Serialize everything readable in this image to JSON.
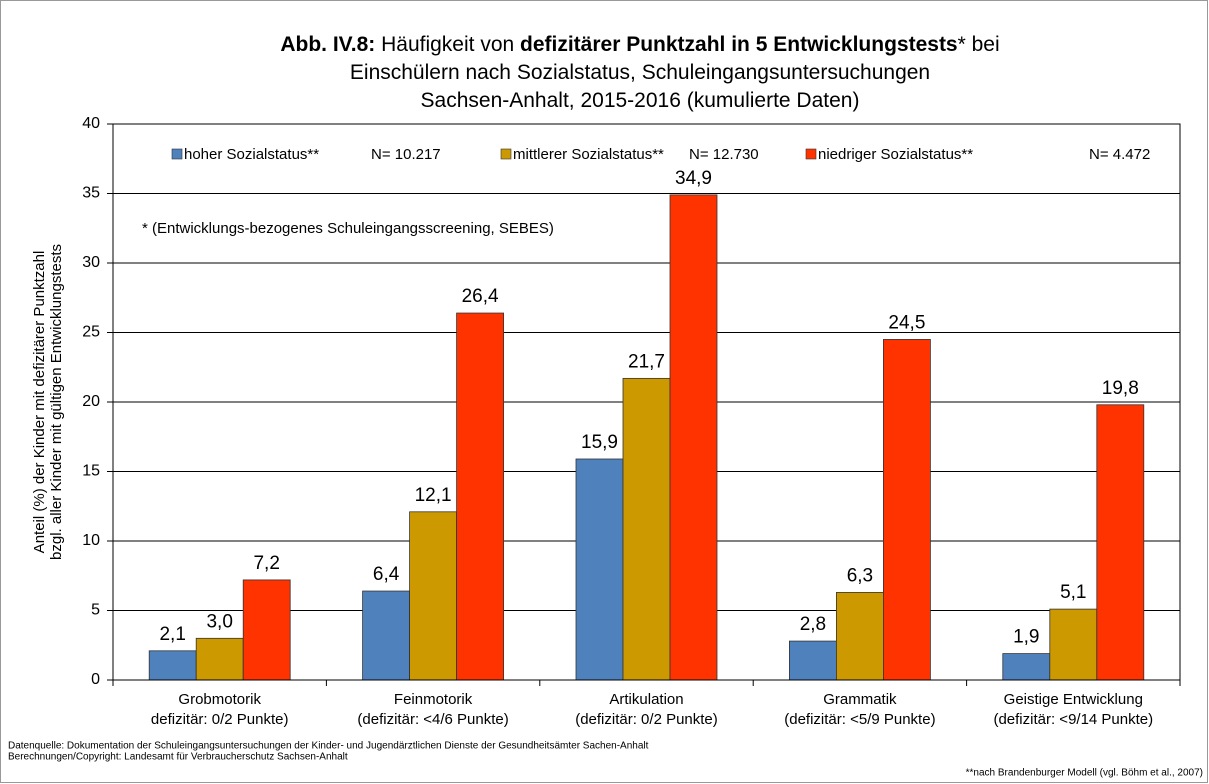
{
  "chart_data": {
    "type": "bar",
    "title_lines": [
      [
        {
          "text": "Abb. IV.8:",
          "bold": true
        },
        {
          "text": " Häufigkeit von ",
          "bold": false
        },
        {
          "text": "defizitärer Punktzahl in 5 Entwicklungstests",
          "bold": true
        },
        {
          "text": "* bei",
          "bold": false
        }
      ],
      [
        {
          "text": "Einschülern nach Sozialstatus, Schuleingangsuntersuchungen",
          "bold": false
        }
      ],
      [
        {
          "text": "Sachsen-Anhalt, 2015-2016 (kumulierte Daten)",
          "bold": false
        }
      ]
    ],
    "y_label": [
      "Anteil (%) der Kinder mit defizitärer Punktzahl",
      "bzgl. aller Kinder mit gültigen Entwicklungstests"
    ],
    "annotation": "* (Entwicklungs-bezogenes Schuleingangsscreening, SEBES)",
    "categories": [
      [
        "Grobmotorik",
        "defizitär: 0/2 Punkte)"
      ],
      [
        "Feinmotorik",
        "(defizitär: <4/6 Punkte)"
      ],
      [
        "Artikulation",
        "(defizitär: 0/2 Punkte)"
      ],
      [
        "Grammatik",
        "(defizitär: <5/9 Punkte)"
      ],
      [
        "Geistige Entwicklung",
        "(defizitär: <9/14 Punkte)"
      ]
    ],
    "series": [
      {
        "name": "hoher Sozialstatus**",
        "n_label": "N= 10.217",
        "color": "#4f81bd",
        "values": [
          2.1,
          6.4,
          15.9,
          2.8,
          1.9
        ],
        "value_labels": [
          "2,1",
          "6,4",
          "15,9",
          "2,8",
          "1,9"
        ]
      },
      {
        "name": "mittlerer Sozialstatus**",
        "n_label": "N= 12.730",
        "color": "#cc9900",
        "values": [
          3.0,
          12.1,
          21.7,
          6.3,
          5.1
        ],
        "value_labels": [
          "3,0",
          "12,1",
          "21,7",
          "6,3",
          "5,1"
        ]
      },
      {
        "name": "niedriger Sozialstatus**",
        "n_label": "N= 4.472",
        "color": "#ff3300",
        "values": [
          7.2,
          26.4,
          34.9,
          24.5,
          19.8
        ],
        "value_labels": [
          "7,2",
          "26,4",
          "34,9",
          "24,5",
          "19,8"
        ]
      }
    ],
    "ylim": [
      0,
      40
    ],
    "yticks": [
      0,
      5,
      10,
      15,
      20,
      25,
      30,
      35,
      40
    ],
    "grid": true,
    "footer_left": [
      "Datenquelle: Dokumentation der Schuleingangsuntersuchungen der Kinder- und Jugendärztlichen Dienste der Gesundheitsämter Sachen-Anhalt",
      "Berechnungen/Copyright: Landesamt für Verbraucherschutz Sachsen-Anhalt"
    ],
    "footer_right": "**nach Brandenburger Modell (vgl. Böhm et al., 2007)"
  }
}
